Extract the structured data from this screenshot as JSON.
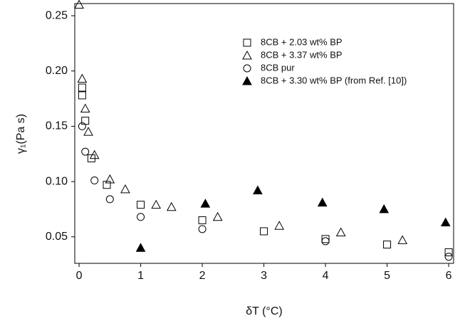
{
  "chart_data": {
    "type": "scatter",
    "x_label": "δT (°C)",
    "y_label": "γ₁(Pa s)",
    "xlim": [
      -0.07,
      6.08
    ],
    "ylim": [
      0.026,
      0.261
    ],
    "xticks": [
      0,
      1,
      2,
      3,
      4,
      5,
      6
    ],
    "yticks": [
      0.05,
      {
        "value": 0.1,
        "label": "0.10"
      },
      0.15,
      {
        "value": 0.2,
        "label": "0.20"
      },
      0.25
    ],
    "legend": "upper right",
    "series": [
      {
        "name": "8CB + 2.03 wt% BP",
        "color": "#000000",
        "marker": "square",
        "filled": false,
        "x": [
          0.05,
          0.05,
          0.1,
          0.2,
          0.45,
          1,
          2,
          3,
          4,
          5,
          6
        ],
        "values": [
          0.185,
          0.178,
          0.155,
          0.121,
          0.097,
          0.079,
          0.065,
          0.055,
          0.048,
          0.043,
          0.036
        ]
      },
      {
        "name": "8CB + 3.37 wt% BP",
        "color": "#000000",
        "marker": "triangle",
        "filled": false,
        "x": [
          0,
          0.05,
          0.1,
          0.15,
          0.25,
          0.5,
          0.75,
          1.25,
          1.5,
          2.25,
          3.25,
          4.25,
          5.25
        ],
        "values": [
          0.26,
          0.193,
          0.166,
          0.145,
          0.124,
          0.102,
          0.093,
          0.079,
          0.077,
          0.068,
          0.06,
          0.054,
          0.047
        ]
      },
      {
        "name": "8CB pur",
        "color": "#000000",
        "marker": "circle",
        "filled": false,
        "x": [
          0.05,
          0.1,
          0.25,
          0.5,
          1,
          2,
          4,
          6
        ],
        "values": [
          0.15,
          0.127,
          0.101,
          0.084,
          0.068,
          0.057,
          0.046,
          0.032
        ]
      },
      {
        "name": "8CB + 3.30 wt% BP (from Ref. [10])",
        "color": "#000000",
        "marker": "triangle",
        "filled": true,
        "x": [
          1,
          2.05,
          2.9,
          3.95,
          4.95,
          5.95
        ],
        "values": [
          0.04,
          0.08,
          0.092,
          0.081,
          0.075,
          0.063
        ]
      }
    ]
  }
}
